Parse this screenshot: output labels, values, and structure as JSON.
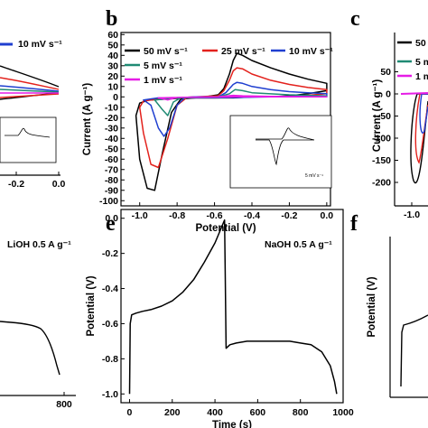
{
  "colors": {
    "black": "#000000",
    "red": "#e3211c",
    "blue": "#1f3fd0",
    "green": "#1f8a73",
    "magenta": "#e61ce6"
  },
  "panels": {
    "a": {
      "legend_visible": "10 mV s⁻¹",
      "x_ticks": [
        "-0.2",
        "0.0"
      ]
    },
    "b": {
      "label": "b"
    },
    "c": {
      "label": "c",
      "legend_visible": [
        "50",
        "5 m",
        "1 m"
      ],
      "y_ticks": [
        "50",
        "0",
        "-50",
        "-100",
        "-150",
        "-200"
      ],
      "x_tick": "-1.0"
    },
    "d": {
      "note": "LiOH 0.5 A g⁻¹",
      "x_tick": "800"
    },
    "e": {
      "label": "e",
      "note": "NaOH 0.5 A g⁻¹"
    },
    "f": {
      "label": "f"
    }
  },
  "chart_data": [
    {
      "panel": "b",
      "type": "line",
      "xlabel": "Potential (V)",
      "ylabel": "Current (A g⁻¹)",
      "xlim": [
        -1.1,
        0.02
      ],
      "ylim": [
        -105,
        62
      ],
      "x_ticks": [
        -1.0,
        -0.8,
        -0.6,
        -0.4,
        -0.2,
        0.0
      ],
      "x_tick_labels": [
        "-1.0",
        "-0.8",
        "-0.6",
        "-0.4",
        "-0.2",
        "0.0"
      ],
      "y_ticks": [
        60,
        50,
        40,
        30,
        20,
        10,
        0,
        -10,
        -20,
        -30,
        -40,
        -50,
        -60,
        -70,
        -80,
        -90,
        -100
      ],
      "y_tick_labels": [
        "60",
        "50",
        "40",
        "30",
        "20",
        "10",
        "0",
        "-10",
        "-20",
        "-30",
        "-40",
        "-50",
        "-60",
        "-70",
        "-80",
        "-90",
        "-100"
      ],
      "legend": [
        "50 mV s⁻¹",
        "25 mV s⁻¹",
        "10 mV s⁻¹",
        "5 mV s⁻¹",
        "1 mV s⁻¹"
      ],
      "series": [
        {
          "name": "50 mV s⁻¹",
          "color": "#000000",
          "x": [
            -0.58,
            -0.55,
            -0.52,
            -0.5,
            -0.48,
            -0.45,
            -0.4,
            -0.3,
            -0.2,
            -0.1,
            0.0,
            0.0,
            -0.1,
            -0.2,
            -0.3,
            -0.4,
            -0.5,
            -0.55,
            -0.6,
            -0.7,
            -0.78,
            -0.83,
            -0.88,
            -0.92,
            -0.96,
            -1.0,
            -1.02,
            -1.0,
            -0.95,
            -0.85,
            -0.75,
            -0.65,
            -0.58
          ],
          "y": [
            2,
            8,
            22,
            35,
            42,
            40,
            35,
            28,
            22,
            17,
            13,
            6,
            3,
            1,
            0,
            0,
            -1,
            -1,
            -1,
            -1,
            -2,
            -15,
            -55,
            -90,
            -88,
            -60,
            -18,
            -6,
            -3,
            -2,
            -1,
            0,
            2
          ]
        },
        {
          "name": "25 mV s⁻¹",
          "color": "#e3211c",
          "x": [
            -0.58,
            -0.55,
            -0.52,
            -0.5,
            -0.48,
            -0.45,
            -0.4,
            -0.3,
            -0.2,
            -0.1,
            0.0,
            0.0,
            -0.2,
            -0.4,
            -0.6,
            -0.75,
            -0.8,
            -0.85,
            -0.9,
            -0.94,
            -0.98,
            -1.0,
            -0.98,
            -0.9,
            -0.8,
            -0.7,
            -0.58
          ],
          "y": [
            1,
            6,
            16,
            25,
            28,
            27,
            22,
            16,
            12,
            9,
            7,
            3,
            0,
            0,
            -1,
            -1,
            -8,
            -40,
            -68,
            -65,
            -35,
            -10,
            -4,
            -2,
            -1,
            0,
            1
          ]
        },
        {
          "name": "10 mV s⁻¹",
          "color": "#1f3fd0",
          "x": [
            -0.58,
            -0.54,
            -0.5,
            -0.48,
            -0.45,
            -0.4,
            -0.3,
            -0.2,
            -0.1,
            0.0,
            0.0,
            -0.3,
            -0.6,
            -0.76,
            -0.8,
            -0.84,
            -0.87,
            -0.9,
            -0.94,
            -0.98,
            -0.9,
            -0.8,
            -0.7,
            -0.58
          ],
          "y": [
            0,
            4,
            12,
            14,
            13,
            10,
            7,
            5,
            4,
            3,
            1,
            0,
            -1,
            -1,
            -8,
            -30,
            -38,
            -30,
            -8,
            -3,
            -1,
            -1,
            0,
            0
          ]
        },
        {
          "name": "5 mV s⁻¹",
          "color": "#1f8a73",
          "x": [
            -0.58,
            -0.52,
            -0.49,
            -0.45,
            -0.4,
            -0.2,
            0.0,
            0.0,
            -0.5,
            -0.78,
            -0.82,
            -0.85,
            -0.88,
            -0.92,
            -0.8,
            -0.58
          ],
          "y": [
            0,
            3,
            7,
            6,
            4,
            2,
            1,
            0,
            0,
            -1,
            -5,
            -18,
            -12,
            -3,
            -1,
            0
          ]
        },
        {
          "name": "1 mV s⁻¹",
          "color": "#e61ce6",
          "x": [
            -0.58,
            -0.5,
            -0.45,
            -0.3,
            0.0,
            0.0,
            -0.5,
            -0.8,
            -0.85,
            -0.9,
            -0.8,
            -0.58
          ],
          "y": [
            0,
            1.5,
            1,
            0.4,
            0.2,
            0,
            0,
            -0.5,
            -3,
            -1,
            -0.5,
            0
          ]
        }
      ]
    },
    {
      "panel": "e",
      "type": "line",
      "xlabel": "Time (s)",
      "ylabel": "Potential (V)",
      "xlim": [
        -40,
        1000
      ],
      "ylim": [
        -1.05,
        0.05
      ],
      "x_ticks": [
        0,
        200,
        400,
        600,
        800,
        1000
      ],
      "x_tick_labels": [
        "0",
        "200",
        "400",
        "600",
        "800",
        "1000"
      ],
      "y_ticks": [
        0.0,
        -0.2,
        -0.4,
        -0.6,
        -0.8,
        -1.0
      ],
      "y_tick_labels": [
        "0.0",
        "-0.2",
        "-0.4",
        "-0.6",
        "-0.8",
        "-1.0"
      ],
      "series": [
        {
          "color": "#000000",
          "x": [
            0,
            3,
            10,
            30,
            60,
            100,
            150,
            200,
            250,
            300,
            350,
            400,
            445,
            448,
            452,
            470,
            500,
            550,
            600,
            650,
            700,
            750,
            800,
            850,
            900,
            940,
            960,
            970
          ],
          "y": [
            -1.0,
            -0.6,
            -0.55,
            -0.54,
            -0.53,
            -0.52,
            -0.5,
            -0.47,
            -0.42,
            -0.35,
            -0.25,
            -0.14,
            -0.01,
            -0.3,
            -0.74,
            -0.72,
            -0.71,
            -0.7,
            -0.7,
            -0.7,
            -0.7,
            -0.7,
            -0.71,
            -0.72,
            -0.76,
            -0.84,
            -0.93,
            -1.0
          ]
        }
      ]
    }
  ]
}
